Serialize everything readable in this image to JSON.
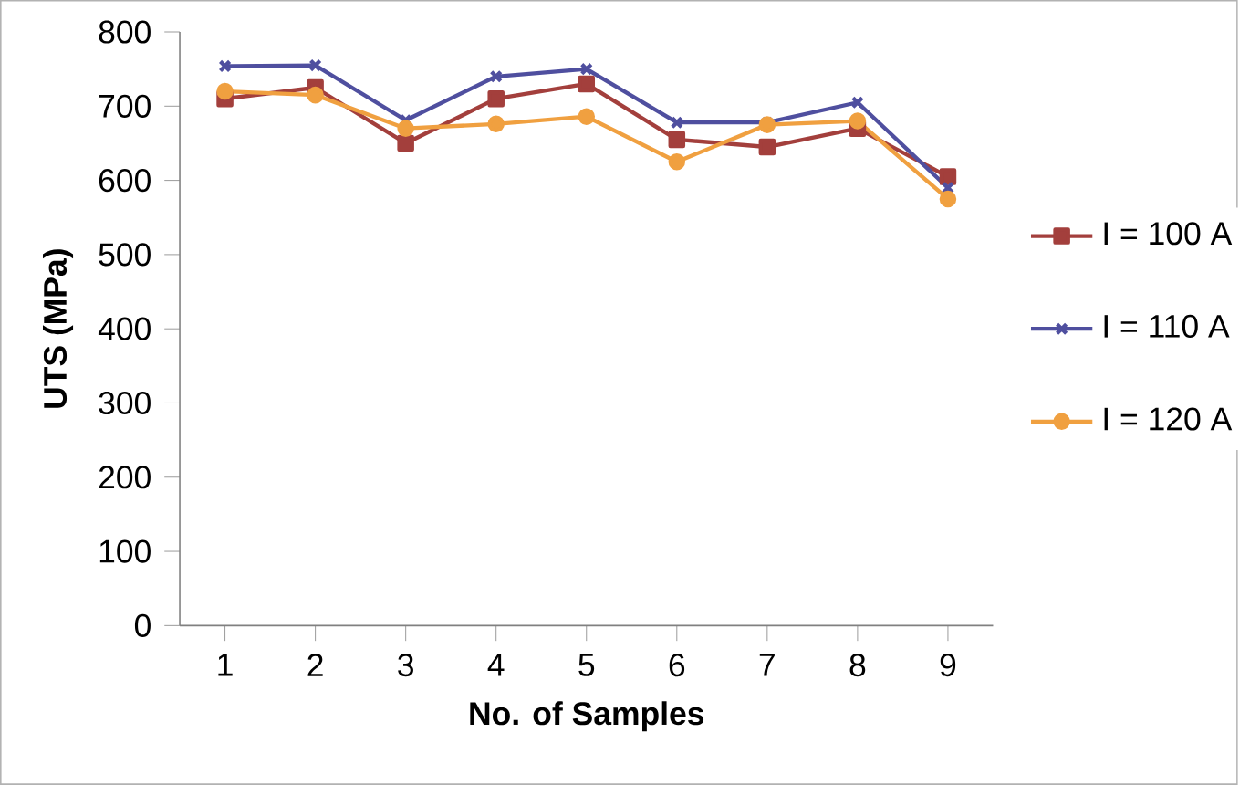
{
  "chart_data": {
    "type": "line",
    "xlabel": "No. of Samples",
    "ylabel": "UTS (MPa)",
    "categories": [
      "1",
      "2",
      "3",
      "4",
      "5",
      "6",
      "7",
      "8",
      "9"
    ],
    "ylim": [
      0,
      800
    ],
    "yticks": [
      0,
      100,
      200,
      300,
      400,
      500,
      600,
      700,
      800
    ],
    "legend": "right",
    "grid": false,
    "series": [
      {
        "name": "I = 100 A",
        "color": "#a33f3c",
        "marker": "square",
        "values": [
          710,
          725,
          650,
          710,
          730,
          655,
          645,
          670,
          605
        ]
      },
      {
        "name": "I = 110 A",
        "color": "#4f4f9f",
        "marker": "cross",
        "values": [
          754,
          755,
          681,
          740,
          750,
          678,
          678,
          705,
          590
        ]
      },
      {
        "name": "I = 120 A",
        "color": "#f0a040",
        "marker": "circle",
        "values": [
          720,
          715,
          670,
          676,
          686,
          625,
          675,
          680,
          575
        ]
      }
    ]
  }
}
